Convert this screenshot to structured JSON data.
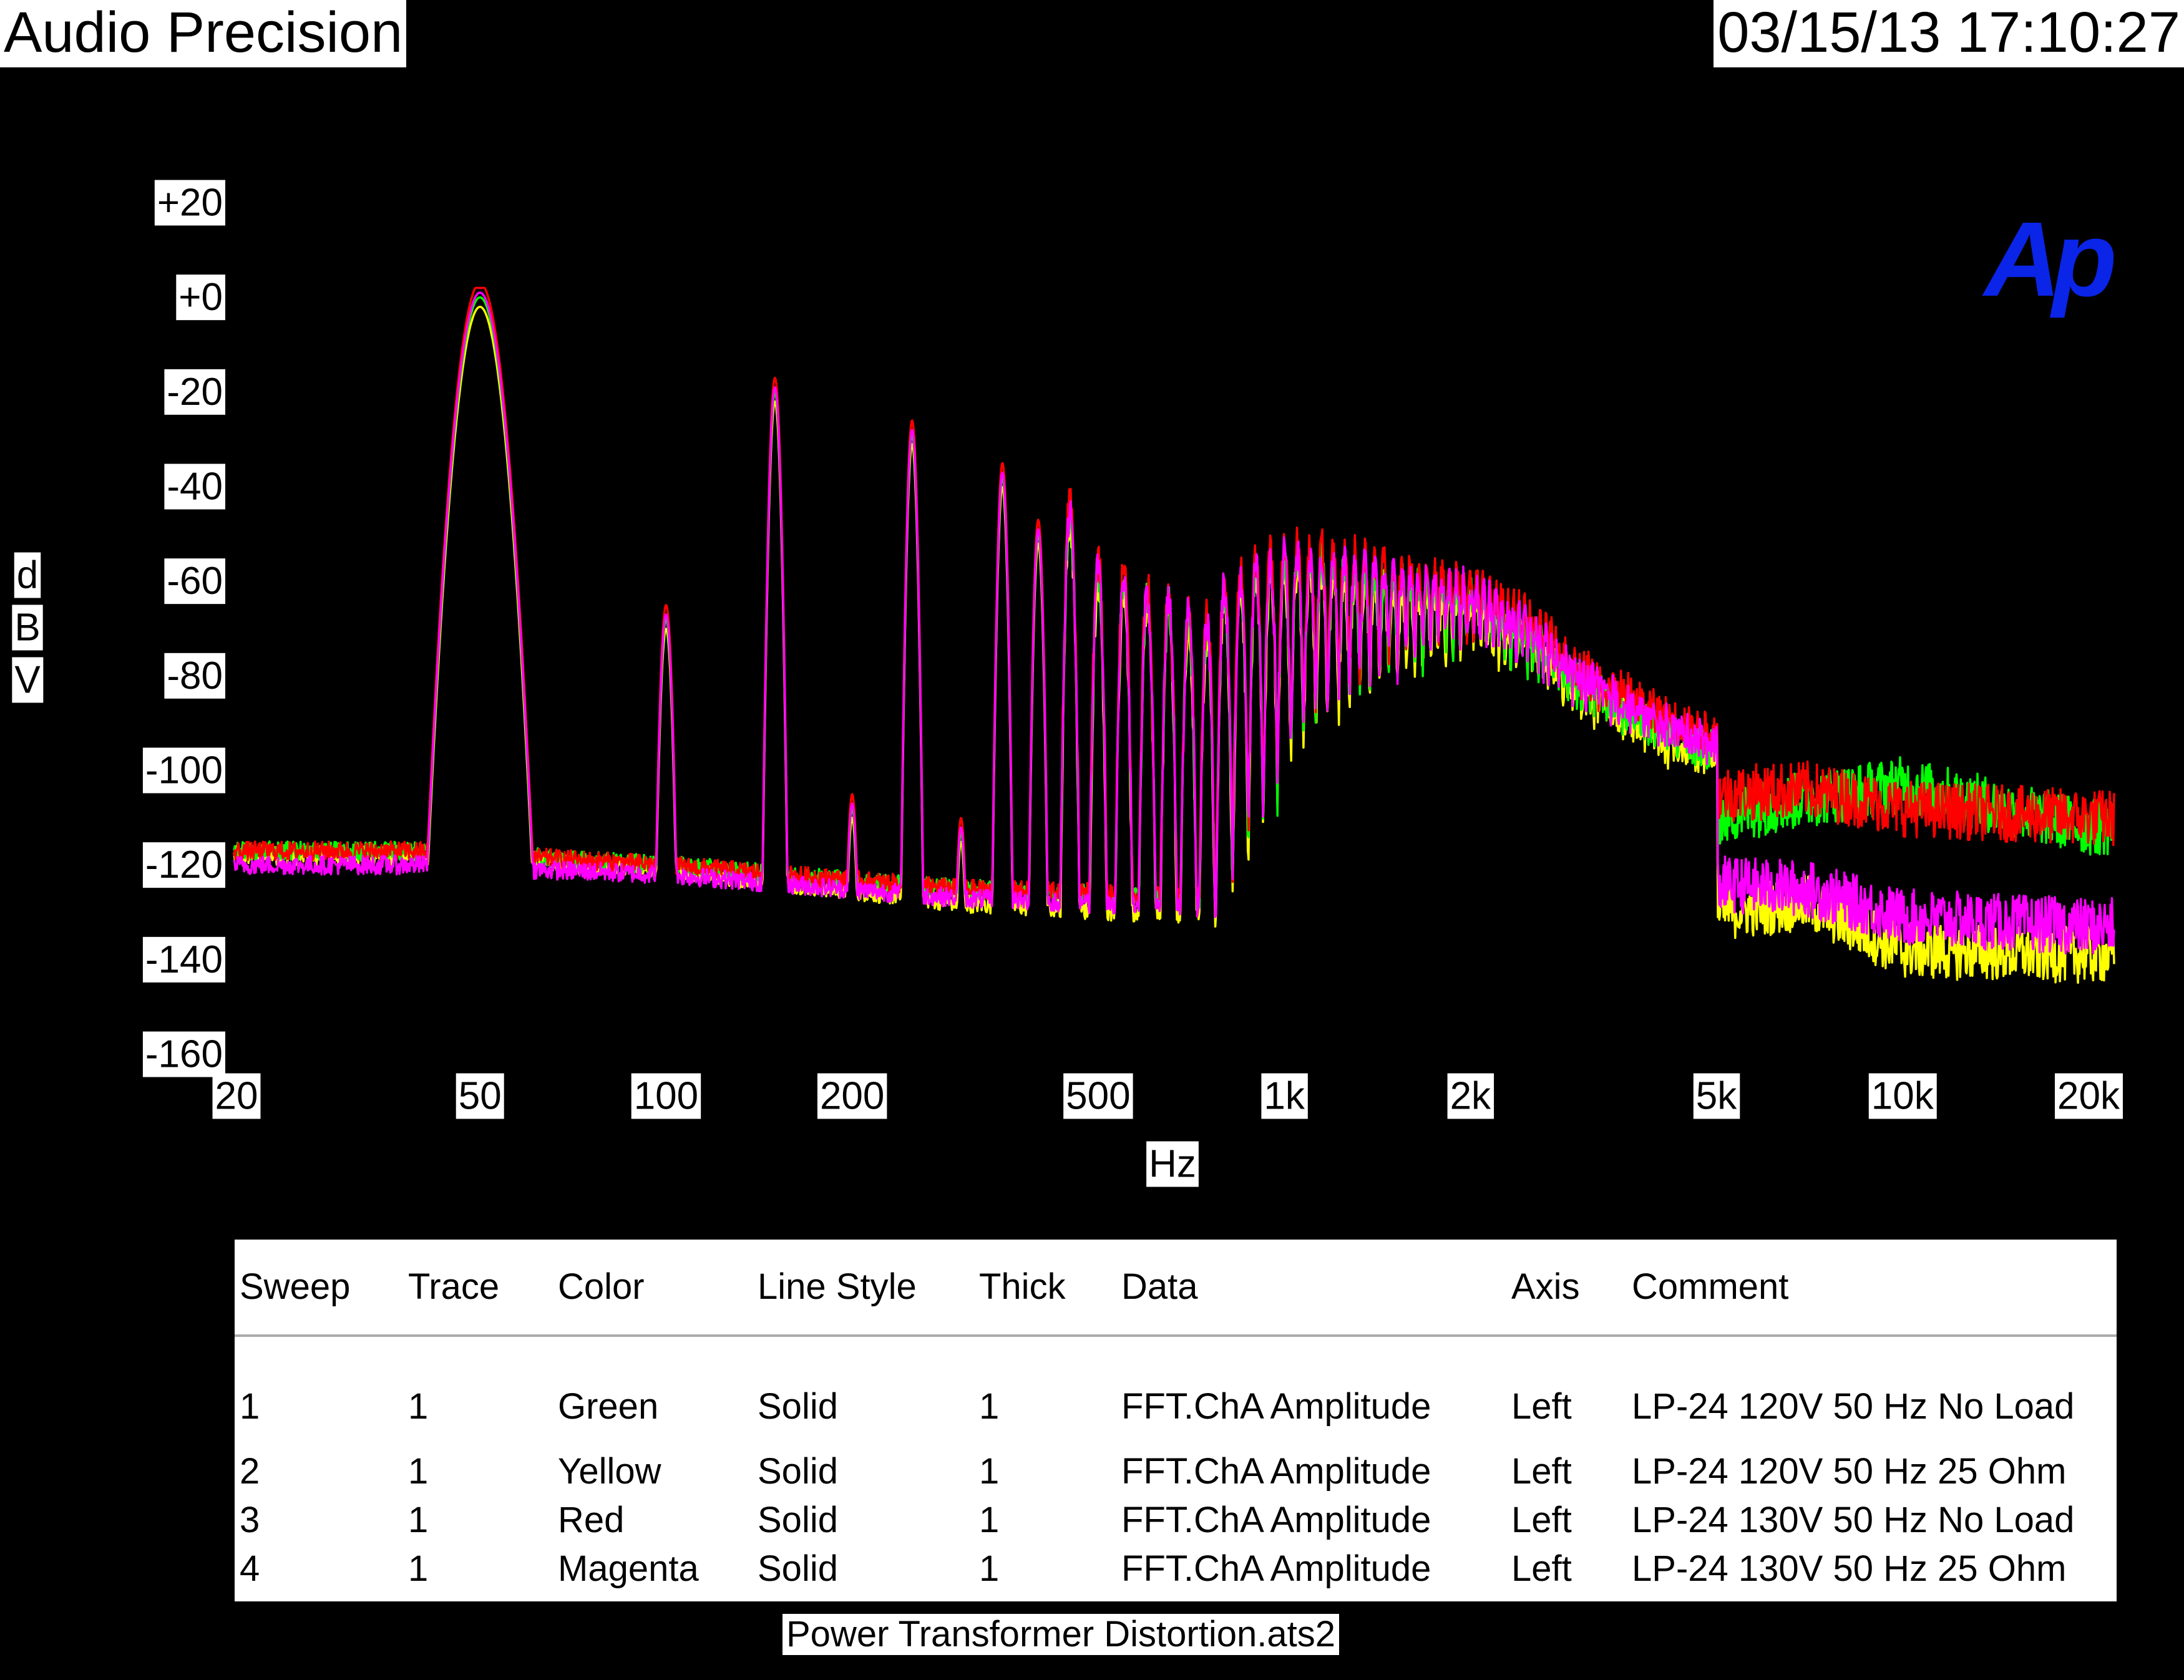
{
  "header": {
    "brand": "Audio Precision",
    "datetime": "03/15/13 17:10:27"
  },
  "logo": {
    "text": "Ap",
    "color": "#0a24e8"
  },
  "footer": {
    "filename": "Power Transformer Distortion.ats2"
  },
  "chart_data": {
    "type": "line",
    "xscale": "log",
    "xlim": [
      20,
      22000
    ],
    "ylim": [
      -160,
      20
    ],
    "xlabel": "Hz",
    "ylabel": "dBV",
    "ylabel_chars": [
      "d",
      "B",
      "V"
    ],
    "xticks": [
      {
        "v": 20,
        "label": "20"
      },
      {
        "v": 50,
        "label": "50"
      },
      {
        "v": 100,
        "label": "100"
      },
      {
        "v": 200,
        "label": "200"
      },
      {
        "v": 500,
        "label": "500"
      },
      {
        "v": 1000,
        "label": "1k"
      },
      {
        "v": 2000,
        "label": "2k"
      },
      {
        "v": 5000,
        "label": "5k"
      },
      {
        "v": 10000,
        "label": "10k"
      },
      {
        "v": 20000,
        "label": "20k"
      }
    ],
    "yticks": [
      {
        "v": 20,
        "label": "+20"
      },
      {
        "v": 0,
        "label": "+0"
      },
      {
        "v": -20,
        "label": "-20"
      },
      {
        "v": -40,
        "label": "-40"
      },
      {
        "v": -60,
        "label": "-60"
      },
      {
        "v": -80,
        "label": "-80"
      },
      {
        "v": -100,
        "label": "-100"
      },
      {
        "v": -120,
        "label": "-120"
      },
      {
        "v": -140,
        "label": "-140"
      },
      {
        "v": -160,
        "label": "-160"
      }
    ],
    "harmonics": {
      "fundamental_hz": 50,
      "series_offsets_db": [
        0,
        -2,
        3,
        1
      ],
      "peaks_db": [
        [
          50,
          0
        ],
        [
          100,
          -68
        ],
        [
          150,
          -20
        ],
        [
          200,
          -108
        ],
        [
          250,
          -29
        ],
        [
          300,
          -113
        ],
        [
          350,
          -38
        ],
        [
          400,
          -50
        ],
        [
          450,
          -46
        ],
        [
          500,
          -58
        ],
        [
          550,
          -60
        ],
        [
          600,
          -63
        ],
        [
          650,
          -65
        ],
        [
          700,
          -68
        ],
        [
          750,
          -70
        ],
        [
          800,
          -62
        ],
        [
          850,
          -60
        ],
        [
          900,
          -58
        ],
        [
          950,
          -57
        ],
        [
          1000,
          -55
        ],
        [
          1200,
          -56
        ],
        [
          1500,
          -59
        ],
        [
          2000,
          -62
        ],
        [
          2500,
          -70
        ],
        [
          3000,
          -80
        ],
        [
          4000,
          -90
        ],
        [
          5000,
          -95
        ]
      ]
    },
    "series": [
      {
        "name": "Green",
        "color": "#00ff00",
        "floor": [
          [
            20,
            -117
          ],
          [
            40,
            -117
          ],
          [
            100,
            -120
          ],
          [
            300,
            -125
          ],
          [
            1000,
            -128
          ],
          [
            3000,
            -125
          ],
          [
            5000,
            -110
          ],
          [
            7000,
            -106
          ],
          [
            10000,
            -103
          ],
          [
            20000,
            -112
          ]
        ]
      },
      {
        "name": "Yellow",
        "color": "#ffff00",
        "floor": [
          [
            20,
            -118
          ],
          [
            40,
            -118
          ],
          [
            100,
            -121
          ],
          [
            300,
            -128
          ],
          [
            1000,
            -132
          ],
          [
            3000,
            -134
          ],
          [
            5000,
            -130
          ],
          [
            7000,
            -128
          ],
          [
            10000,
            -138
          ],
          [
            20000,
            -139
          ]
        ]
      },
      {
        "name": "Red",
        "color": "#ff0000",
        "floor": [
          [
            20,
            -117
          ],
          [
            40,
            -117
          ],
          [
            100,
            -120
          ],
          [
            300,
            -125
          ],
          [
            1000,
            -127
          ],
          [
            3000,
            -118
          ],
          [
            5000,
            -105
          ],
          [
            7000,
            -104
          ],
          [
            10000,
            -108
          ],
          [
            20000,
            -110
          ]
        ]
      },
      {
        "name": "Magenta",
        "color": "#ff00ff",
        "floor": [
          [
            20,
            -120
          ],
          [
            40,
            -120
          ],
          [
            100,
            -122
          ],
          [
            300,
            -127
          ],
          [
            1000,
            -130
          ],
          [
            3000,
            -130
          ],
          [
            5000,
            -124
          ],
          [
            7000,
            -125
          ],
          [
            10000,
            -131
          ],
          [
            20000,
            -133
          ]
        ]
      }
    ]
  },
  "legend": {
    "headers": [
      "Sweep",
      "Trace",
      "Color",
      "Line Style",
      "Thick",
      "Data",
      "Axis",
      "Comment"
    ],
    "rows": [
      [
        "1",
        "1",
        "Green",
        "Solid",
        "1",
        "FFT.ChA Amplitude",
        "Left",
        "LP-24 120V 50 Hz No Load"
      ],
      [
        "2",
        "1",
        "Yellow",
        "Solid",
        "1",
        "FFT.ChA Amplitude",
        "Left",
        "LP-24 120V 50 Hz 25 Ohm"
      ],
      [
        "3",
        "1",
        "Red",
        "Solid",
        "1",
        "FFT.ChA Amplitude",
        "Left",
        "LP-24 130V 50 Hz No Load"
      ],
      [
        "4",
        "1",
        "Magenta",
        "Solid",
        "1",
        "FFT.ChA Amplitude",
        "Left",
        "LP-24 130V 50 Hz 25 Ohm"
      ]
    ]
  }
}
